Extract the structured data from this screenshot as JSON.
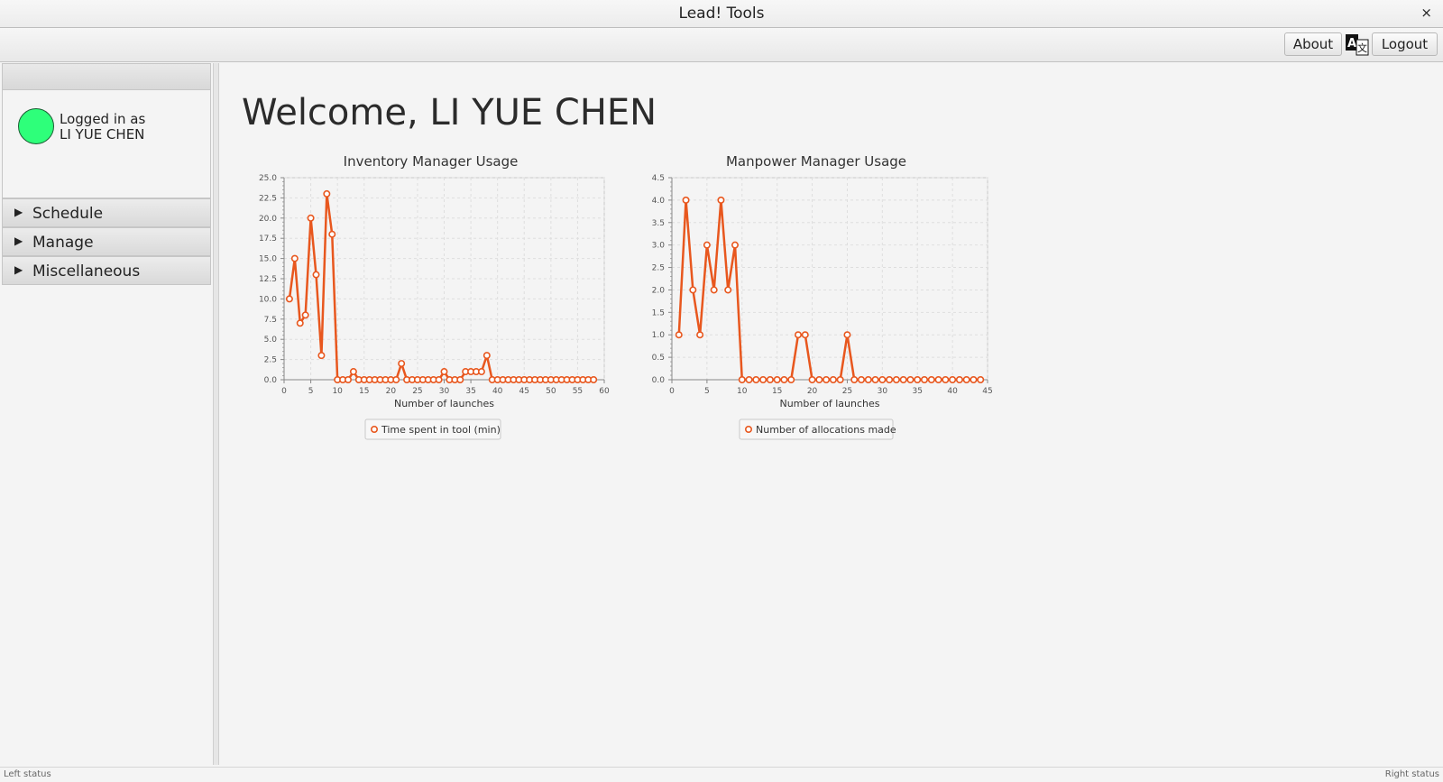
{
  "window": {
    "title": "Lead! Tools",
    "close_glyph": "×"
  },
  "toolbar": {
    "about_label": "About",
    "logout_label": "Logout",
    "lang_icon": "translate-icon"
  },
  "sidebar": {
    "logged_in_label": "Logged in as",
    "user_name": "LI YUE CHEN",
    "avatar_color": "#2eff7a",
    "items": [
      {
        "label": "Schedule"
      },
      {
        "label": "Manage"
      },
      {
        "label": "Miscellaneous"
      }
    ]
  },
  "main": {
    "welcome": "Welcome, LI YUE CHEN"
  },
  "status": {
    "left": "Left status",
    "right": "Right status"
  },
  "chart_data": [
    {
      "type": "line",
      "title": "Inventory Manager Usage",
      "xlabel": "Number of launches",
      "ylabel": "",
      "xlim": [
        0,
        60
      ],
      "ylim": [
        0,
        25
      ],
      "xticks": [
        0,
        5,
        10,
        15,
        20,
        25,
        30,
        35,
        40,
        45,
        50,
        55,
        60
      ],
      "yticks": [
        0,
        2.5,
        5,
        7.5,
        10,
        12.5,
        15,
        17.5,
        20,
        22.5,
        25
      ],
      "grid": true,
      "legend_position": "bottom",
      "color": "#e8571e",
      "series": [
        {
          "name": "Time spent in tool (min)",
          "x": [
            1,
            2,
            3,
            4,
            5,
            6,
            7,
            8,
            9,
            10,
            11,
            12,
            13,
            14,
            15,
            16,
            17,
            18,
            19,
            20,
            21,
            22,
            23,
            24,
            25,
            26,
            27,
            28,
            29,
            30,
            31,
            32,
            33,
            34,
            35,
            36,
            37,
            38,
            39,
            40,
            41,
            42,
            43,
            44,
            45,
            46,
            47,
            48,
            49,
            50,
            51,
            52,
            53,
            54,
            55,
            56,
            57,
            58
          ],
          "y": [
            10,
            15,
            7,
            8,
            20,
            13,
            3,
            23,
            18,
            0,
            0,
            0,
            1,
            0,
            0,
            0,
            0,
            0,
            0,
            0,
            0,
            2,
            0,
            0,
            0,
            0,
            0,
            0,
            0,
            1,
            0,
            0,
            0,
            1,
            1,
            1,
            1,
            3,
            0,
            0,
            0,
            0,
            0,
            0,
            0,
            0,
            0,
            0,
            0,
            0,
            0,
            0,
            0,
            0,
            0,
            0,
            0,
            0
          ]
        }
      ]
    },
    {
      "type": "line",
      "title": "Manpower Manager Usage",
      "xlabel": "Number of launches",
      "ylabel": "",
      "xlim": [
        0,
        45
      ],
      "ylim": [
        0,
        4.5
      ],
      "xticks": [
        0,
        5,
        10,
        15,
        20,
        25,
        30,
        35,
        40,
        45
      ],
      "yticks": [
        0,
        0.5,
        1,
        1.5,
        2,
        2.5,
        3,
        3.5,
        4,
        4.5
      ],
      "grid": true,
      "legend_position": "bottom",
      "color": "#e8571e",
      "series": [
        {
          "name": "Number of allocations made",
          "x": [
            1,
            2,
            3,
            4,
            5,
            6,
            7,
            8,
            9,
            10,
            11,
            12,
            13,
            14,
            15,
            16,
            17,
            18,
            19,
            20,
            21,
            22,
            23,
            24,
            25,
            26,
            27,
            28,
            29,
            30,
            31,
            32,
            33,
            34,
            35,
            36,
            37,
            38,
            39,
            40,
            41,
            42,
            43,
            44
          ],
          "y": [
            1,
            4,
            2,
            1,
            3,
            2,
            4,
            2,
            3,
            0,
            0,
            0,
            0,
            0,
            0,
            0,
            0,
            1,
            1,
            0,
            0,
            0,
            0,
            0,
            1,
            0,
            0,
            0,
            0,
            0,
            0,
            0,
            0,
            0,
            0,
            0,
            0,
            0,
            0,
            0,
            0,
            0,
            0,
            0
          ]
        }
      ]
    }
  ]
}
